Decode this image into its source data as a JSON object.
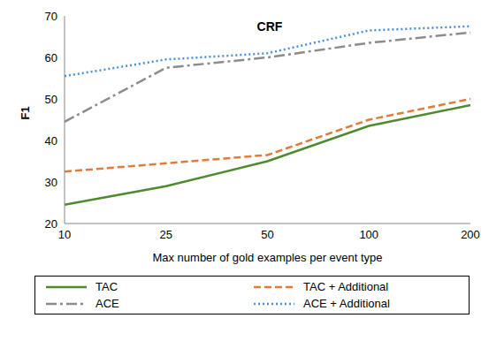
{
  "chart_data": {
    "type": "line",
    "title": "CRF",
    "x_label": "Max number of gold examples per event type",
    "y_label": "F1",
    "categories": [
      "10",
      "25",
      "50",
      "100",
      "200"
    ],
    "ylim": [
      20,
      70
    ],
    "yticks": [
      20,
      30,
      40,
      50,
      60,
      70
    ],
    "grid": false,
    "legend": "bottom",
    "marker": "none",
    "series": [
      {
        "name": "TAC",
        "color": "#4e8a2e",
        "line_style": "solid",
        "values": [
          24.5,
          29,
          35,
          43.5,
          48.5
        ]
      },
      {
        "name": "TAC + Additional",
        "color": "#e07b39",
        "line_style": "dashed",
        "values": [
          32.5,
          34.5,
          36.5,
          45,
          50
        ]
      },
      {
        "name": "ACE",
        "color": "#8c8c8c",
        "line_style": "dashdot",
        "values": [
          44.5,
          57.5,
          60,
          63.5,
          66
        ]
      },
      {
        "name": "ACE + Additional",
        "color": "#4a90d9",
        "line_style": "dotted",
        "values": [
          55.5,
          59.5,
          61,
          66.5,
          67.5
        ]
      }
    ]
  }
}
